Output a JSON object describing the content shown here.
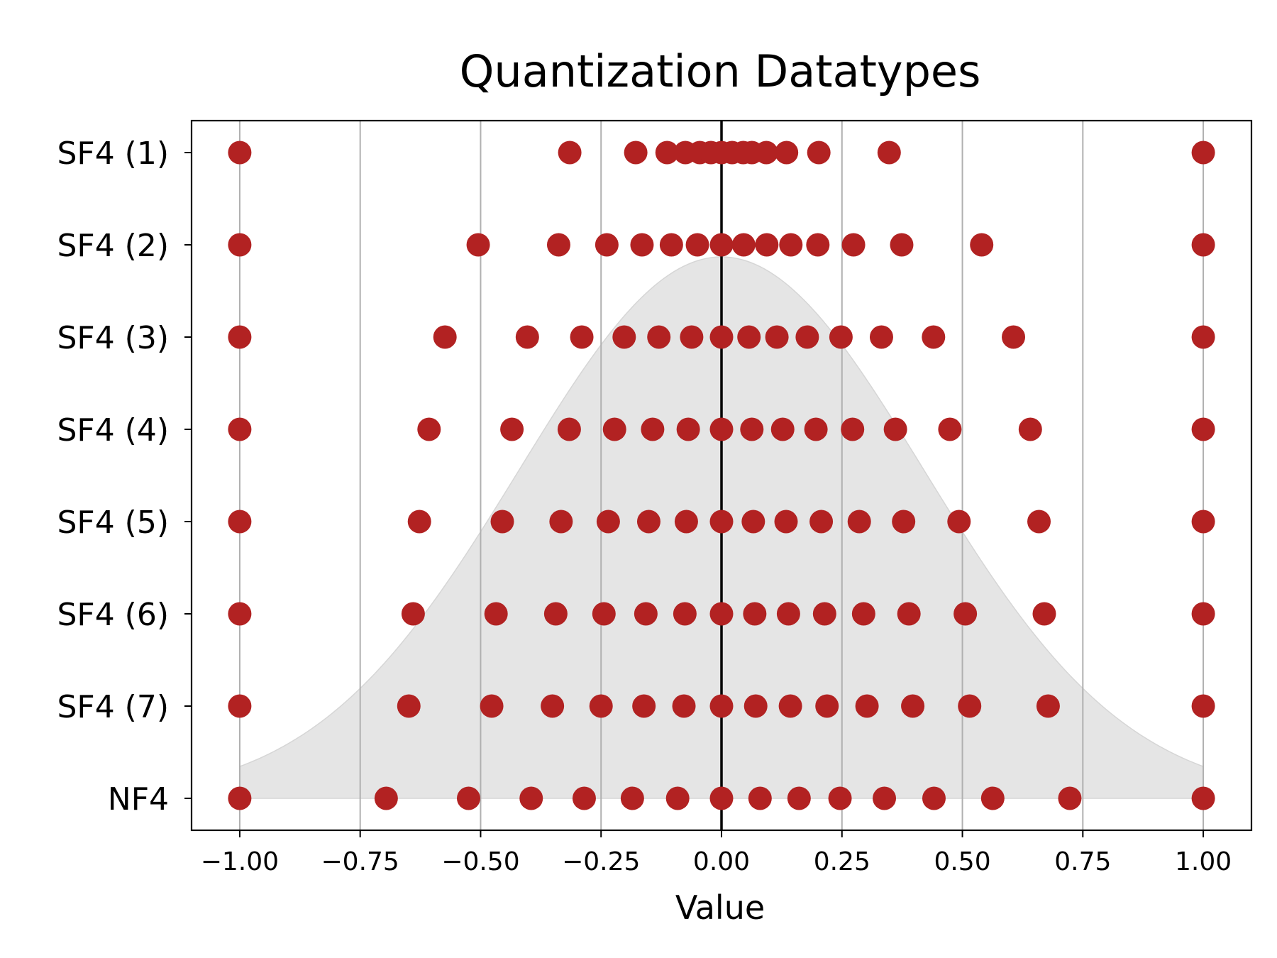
{
  "chart_data": {
    "type": "scatter",
    "title": "Quantization Datatypes",
    "xlabel": "Value",
    "ylabel": "",
    "xlim": [
      -1.1,
      1.1
    ],
    "xticks": [
      -1.0,
      -0.75,
      -0.5,
      -0.25,
      0.0,
      0.25,
      0.5,
      0.75,
      1.0
    ],
    "xtick_labels": [
      "−1.00",
      "−0.75",
      "−0.50",
      "−0.25",
      "0.00",
      "0.25",
      "0.50",
      "0.75",
      "1.00"
    ],
    "grid": "vertical",
    "zero_line": true,
    "background_curve": "gaussian",
    "marker_color": "#b22222",
    "fill_color": "#e5e5e5",
    "series": [
      {
        "name": "SF4 (1)",
        "values": [
          -1.0,
          -0.315,
          -0.178,
          -0.113,
          -0.075,
          -0.045,
          -0.022,
          0.0,
          0.022,
          0.045,
          0.063,
          0.093,
          0.135,
          0.202,
          0.348,
          1.0
        ]
      },
      {
        "name": "SF4 (2)",
        "values": [
          -1.0,
          -0.505,
          -0.338,
          -0.238,
          -0.165,
          -0.104,
          -0.05,
          0.0,
          0.046,
          0.094,
          0.144,
          0.2,
          0.274,
          0.374,
          0.54,
          1.0
        ]
      },
      {
        "name": "SF4 (3)",
        "values": [
          -1.0,
          -0.574,
          -0.403,
          -0.29,
          -0.202,
          -0.13,
          -0.062,
          0.0,
          0.057,
          0.115,
          0.178,
          0.248,
          0.332,
          0.44,
          0.606,
          1.0
        ]
      },
      {
        "name": "SF4 (4)",
        "values": [
          -1.0,
          -0.607,
          -0.435,
          -0.316,
          -0.222,
          -0.143,
          -0.069,
          0.0,
          0.063,
          0.127,
          0.196,
          0.272,
          0.361,
          0.474,
          0.641,
          1.0
        ]
      },
      {
        "name": "SF4 (5)",
        "values": [
          -1.0,
          -0.627,
          -0.455,
          -0.333,
          -0.235,
          -0.151,
          -0.073,
          0.0,
          0.066,
          0.134,
          0.207,
          0.286,
          0.378,
          0.493,
          0.659,
          1.0
        ]
      },
      {
        "name": "SF4 (6)",
        "values": [
          -1.0,
          -0.64,
          -0.468,
          -0.344,
          -0.244,
          -0.157,
          -0.076,
          0.0,
          0.069,
          0.139,
          0.214,
          0.295,
          0.389,
          0.506,
          0.67,
          1.0
        ]
      },
      {
        "name": "SF4 (7)",
        "values": [
          -1.0,
          -0.649,
          -0.477,
          -0.351,
          -0.25,
          -0.161,
          -0.078,
          0.0,
          0.071,
          0.143,
          0.219,
          0.302,
          0.397,
          0.515,
          0.678,
          1.0
        ]
      },
      {
        "name": "NF4",
        "values": [
          -1.0,
          -0.696,
          -0.525,
          -0.395,
          -0.285,
          -0.185,
          -0.091,
          0.0,
          0.08,
          0.161,
          0.246,
          0.338,
          0.441,
          0.563,
          0.723,
          1.0
        ]
      }
    ]
  }
}
